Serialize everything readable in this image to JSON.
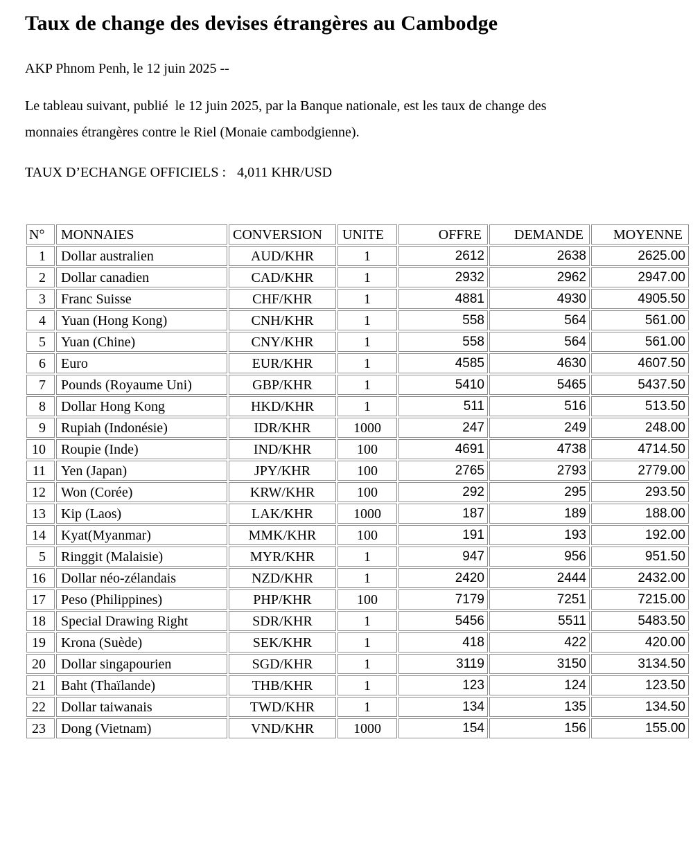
{
  "article": {
    "title": "Taux de change des devises étrangères au Cambodge",
    "dateline": "AKP Phnom Penh, le 12 juin 2025 --",
    "intro_line1": "Le tableau suivant, publié  le 12 juin 2025, par la Banque nationale, est les taux de change des",
    "intro_line2": "monnaies étrangères contre le Riel (Monaie cambodgienne).",
    "official_rate_label": "TAUX D’ECHANGE OFFICIELS :",
    "official_rate_value": "4,011 KHR/USD"
  },
  "table": {
    "headers": [
      "N°",
      "MONNAIES",
      "CONVERSION",
      "UNITE",
      "OFFRE",
      "DEMANDE",
      "MOYENNE"
    ],
    "rows": [
      {
        "no": "1",
        "monnaie": "Dollar australien",
        "conversion": "AUD/KHR",
        "unite": "1",
        "offre": "2612",
        "demande": "2638",
        "moyenne": "2625.00"
      },
      {
        "no": "2",
        "monnaie": "Dollar canadien",
        "conversion": "CAD/KHR",
        "unite": "1",
        "offre": "2932",
        "demande": "2962",
        "moyenne": "2947.00"
      },
      {
        "no": "3",
        "monnaie": "Franc Suisse",
        "conversion": "CHF/KHR",
        "unite": "1",
        "offre": "4881",
        "demande": "4930",
        "moyenne": "4905.50"
      },
      {
        "no": "4",
        "monnaie": "Yuan (Hong Kong)",
        "conversion": "CNH/KHR",
        "unite": "1",
        "offre": "558",
        "demande": "564",
        "moyenne": "561.00"
      },
      {
        "no": "5",
        "monnaie": "Yuan (Chine)",
        "conversion": "CNY/KHR",
        "unite": "1",
        "offre": "558",
        "demande": "564",
        "moyenne": "561.00"
      },
      {
        "no": "6",
        "monnaie": "Euro",
        "conversion": "EUR/KHR",
        "unite": "1",
        "offre": "4585",
        "demande": "4630",
        "moyenne": "4607.50"
      },
      {
        "no": "7",
        "monnaie": "Pounds (Royaume Uni)",
        "conversion": "GBP/KHR",
        "unite": "1",
        "offre": "5410",
        "demande": "5465",
        "moyenne": "5437.50"
      },
      {
        "no": "8",
        "monnaie": "Dollar Hong Kong",
        "conversion": "HKD/KHR",
        "unite": "1",
        "offre": "511",
        "demande": "516",
        "moyenne": "513.50"
      },
      {
        "no": "9",
        "monnaie": "Rupiah (Indonésie)",
        "conversion": "IDR/KHR",
        "unite": "1000",
        "offre": "247",
        "demande": "249",
        "moyenne": "248.00"
      },
      {
        "no": "10",
        "monnaie": "Roupie (Inde)",
        "conversion": "IND/KHR",
        "unite": "100",
        "offre": "4691",
        "demande": "4738",
        "moyenne": "4714.50"
      },
      {
        "no": "11",
        "monnaie": "Yen (Japan)",
        "conversion": "JPY/KHR",
        "unite": "100",
        "offre": "2765",
        "demande": "2793",
        "moyenne": "2779.00"
      },
      {
        "no": "12",
        "monnaie": "Won (Corée)",
        "conversion": "KRW/KHR",
        "unite": "100",
        "offre": "292",
        "demande": "295",
        "moyenne": "293.50"
      },
      {
        "no": "13",
        "monnaie": "Kip (Laos)",
        "conversion": "LAK/KHR",
        "unite": "1000",
        "offre": "187",
        "demande": "189",
        "moyenne": "188.00"
      },
      {
        "no": "14",
        "monnaie": "Kyat(Myanmar)",
        "conversion": "MMK/KHR",
        "unite": "100",
        "offre": "191",
        "demande": "193",
        "moyenne": "192.00"
      },
      {
        "no": "5",
        "monnaie": "Ringgit (Malaisie)",
        "conversion": "MYR/KHR",
        "unite": "1",
        "offre": "947",
        "demande": "956",
        "moyenne": "951.50"
      },
      {
        "no": "16",
        "monnaie": "Dollar néo-zélandais",
        "conversion": "NZD/KHR",
        "unite": "1",
        "offre": "2420",
        "demande": "2444",
        "moyenne": "2432.00"
      },
      {
        "no": "17",
        "monnaie": "Peso (Philippines)",
        "conversion": "PHP/KHR",
        "unite": "100",
        "offre": "7179",
        "demande": "7251",
        "moyenne": "7215.00"
      },
      {
        "no": "18",
        "monnaie": "Special Drawing Right",
        "conversion": "SDR/KHR",
        "unite": "1",
        "offre": "5456",
        "demande": "5511",
        "moyenne": "5483.50"
      },
      {
        "no": "19",
        "monnaie": "Krona (Suède)",
        "conversion": "SEK/KHR",
        "unite": "1",
        "offre": "418",
        "demande": "422",
        "moyenne": "420.00"
      },
      {
        "no": "20",
        "monnaie": "Dollar singapourien",
        "conversion": "SGD/KHR",
        "unite": "1",
        "offre": "3119",
        "demande": "3150",
        "moyenne": "3134.50"
      },
      {
        "no": "21",
        "monnaie": "Baht (Thaïlande)",
        "conversion": "THB/KHR",
        "unite": "1",
        "offre": "123",
        "demande": "124",
        "moyenne": "123.50"
      },
      {
        "no": "22",
        "monnaie": "Dollar taiwanais",
        "conversion": "TWD/KHR",
        "unite": "1",
        "offre": "134",
        "demande": "135",
        "moyenne": "134.50"
      },
      {
        "no": "23",
        "monnaie": "Dong (Vietnam)",
        "conversion": "VND/KHR",
        "unite": "1000",
        "offre": "154",
        "demande": "156",
        "moyenne": "155.00"
      }
    ]
  }
}
